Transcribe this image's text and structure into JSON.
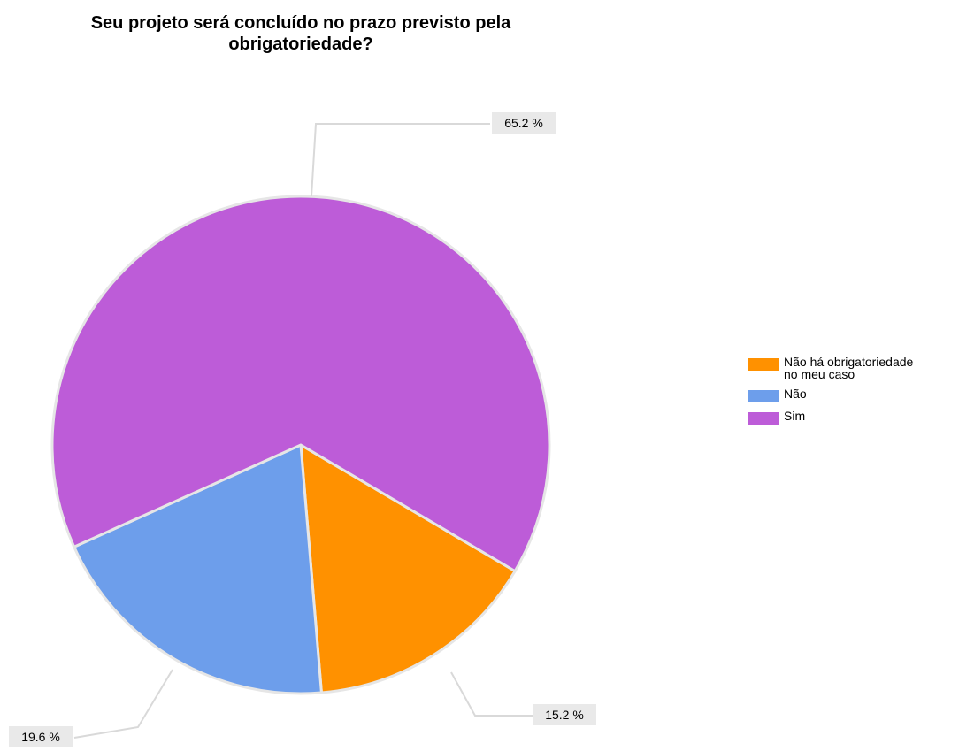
{
  "chart_data": {
    "type": "pie",
    "title_lines": [
      "Seu projeto será concluído no prazo previsto pela",
      "obrigatoriedade?"
    ],
    "slices": [
      {
        "name": "Não há obrigatoriedade no meu caso",
        "value": 15.2,
        "label": "15.2 %",
        "color": "#ff9100"
      },
      {
        "name": "Não",
        "value": 19.6,
        "label": "19.6 %",
        "color": "#6d9eeb"
      },
      {
        "name": "Sim",
        "value": 65.2,
        "label": "65.2 %",
        "color": "#bd5cd8"
      }
    ],
    "legend_position": "right",
    "legend": [
      {
        "lines": [
          "Não há obrigatoriedade",
          "no meu caso"
        ],
        "color": "#ff9100"
      },
      {
        "lines": [
          "Não"
        ],
        "color": "#6d9eeb"
      },
      {
        "lines": [
          "Sim"
        ],
        "color": "#bd5cd8"
      }
    ]
  }
}
